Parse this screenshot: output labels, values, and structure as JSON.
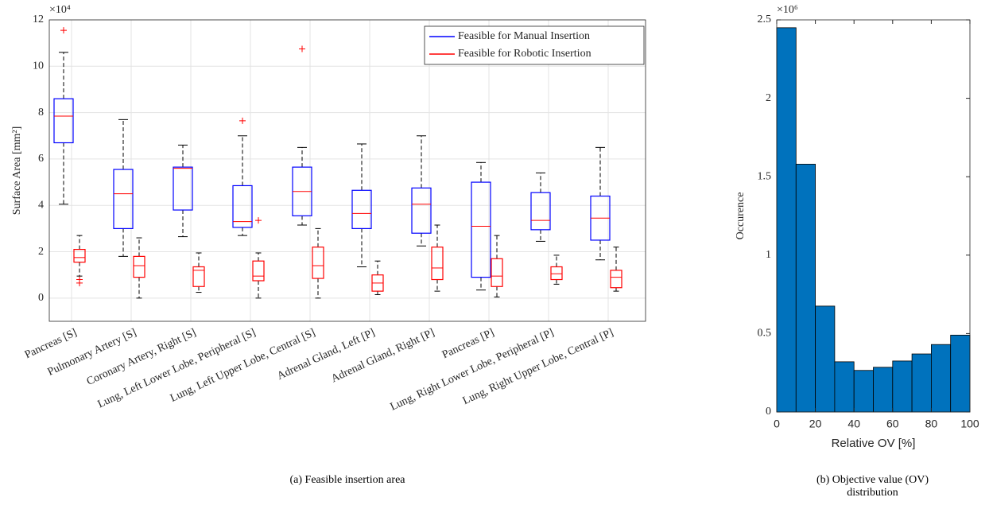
{
  "chart_data": [
    {
      "type": "box",
      "y_label": "Surface Area [mm²]",
      "y_multiplier": "×10⁴",
      "caption": "(a) Feasible insertion area",
      "categories": [
        "Pancreas [S]",
        "Pulmonary Artery [S]",
        "Coronary Artery, Right [S]",
        "Lung, Left Lower Lobe, Peripheral [S]",
        "Lung, Left Upper Lobe, Central [S]",
        "Adrenal Gland, Left [P]",
        "Adrenal Gland, Right [P]",
        "Pancreas [P]",
        "Lung, Right Lower Lobe, Peripheral [P]",
        "Lung, Right Upper Lobe, Central [P]"
      ],
      "series": [
        {
          "name": "Feasible for Manual Insertion",
          "color": "#0000ff",
          "whisker_high": [
            10.6,
            7.7,
            6.6,
            7.0,
            6.5,
            6.65,
            7.0,
            5.85,
            5.4,
            6.5
          ],
          "q3": [
            8.6,
            5.55,
            5.65,
            4.85,
            5.65,
            4.65,
            4.75,
            5.0,
            4.55,
            4.4
          ],
          "median": [
            7.85,
            4.5,
            5.6,
            3.3,
            4.6,
            3.65,
            4.05,
            3.1,
            3.35,
            3.45
          ],
          "q1": [
            6.7,
            3.0,
            3.8,
            3.05,
            3.55,
            3.0,
            2.8,
            0.9,
            2.95,
            2.5
          ],
          "whisker_low": [
            4.05,
            1.8,
            2.65,
            2.7,
            3.15,
            1.35,
            2.25,
            0.35,
            2.45,
            1.65
          ],
          "outliers": [
            [
              11.55
            ],
            [],
            [],
            [
              7.65
            ],
            [
              10.75
            ],
            [],
            [],
            [],
            [],
            []
          ]
        },
        {
          "name": "Feasible for Robotic Insertion",
          "color": "#ff0000",
          "whisker_high": [
            2.7,
            2.6,
            1.95,
            1.95,
            3.0,
            1.6,
            3.15,
            2.7,
            1.85,
            2.2
          ],
          "q3": [
            2.1,
            1.8,
            1.35,
            1.6,
            2.2,
            1.0,
            2.2,
            1.7,
            1.35,
            1.2
          ],
          "median": [
            1.75,
            1.4,
            1.2,
            0.95,
            1.4,
            0.65,
            1.3,
            0.95,
            1.05,
            0.9
          ],
          "q1": [
            1.55,
            0.9,
            0.5,
            0.75,
            0.85,
            0.3,
            0.8,
            0.5,
            0.8,
            0.45
          ],
          "whisker_low": [
            0.95,
            0.0,
            0.25,
            0.0,
            0.0,
            0.15,
            0.3,
            0.05,
            0.6,
            0.3
          ],
          "outliers": [
            [
              0.8,
              0.65
            ],
            [],
            [],
            [
              3.35
            ],
            [],
            [],
            [],
            [],
            [],
            []
          ]
        }
      ],
      "median_color": "#ff0000",
      "whisker_color": "#000000",
      "outlier_color": "#ff0000",
      "ylim": [
        -1,
        12
      ],
      "yticks": [
        0,
        2,
        4,
        6,
        8,
        10,
        12
      ],
      "grid": true,
      "legend": "top-right"
    },
    {
      "type": "histogram",
      "y_label": "Occurence",
      "x_label": "Relative OV [%]",
      "y_multiplier": "×10⁶",
      "caption": "(b) Objective value (OV) distribution",
      "bins": [
        0,
        10,
        20,
        30,
        40,
        50,
        60,
        70,
        80,
        90,
        100
      ],
      "counts": [
        2.45,
        1.58,
        0.675,
        0.32,
        0.265,
        0.285,
        0.325,
        0.37,
        0.43,
        0.49
      ],
      "color": "#0072bd",
      "xlim": [
        0,
        100
      ],
      "xticks": [
        0,
        20,
        40,
        60,
        80,
        100
      ],
      "ylim": [
        0,
        2.5
      ],
      "yticks": [
        0,
        0.5,
        1,
        1.5,
        2,
        2.5
      ],
      "grid": false
    }
  ]
}
